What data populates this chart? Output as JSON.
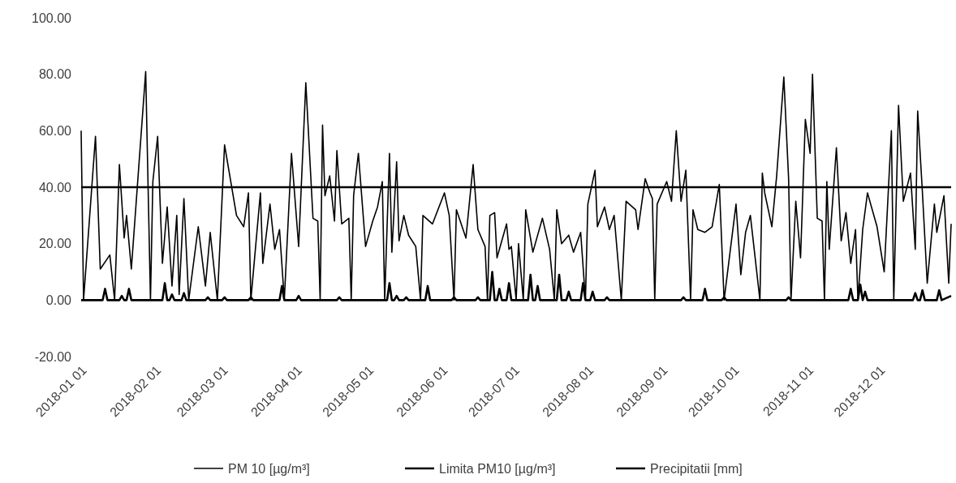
{
  "chart_data": {
    "type": "line",
    "xlim": [
      "2018-01-01",
      "2018-12-31"
    ],
    "xticks": [
      {
        "value": "2018-01-01",
        "label": "2018-01 01"
      },
      {
        "value": "2018-02-01",
        "label": "2018-02 01"
      },
      {
        "value": "2018-03-01",
        "label": "2018-03 01"
      },
      {
        "value": "2018-04-01",
        "label": "2018-04 01"
      },
      {
        "value": "2018-05-01",
        "label": "2018-05 01"
      },
      {
        "value": "2018-06-01",
        "label": "2018-06 01"
      },
      {
        "value": "2018-07-01",
        "label": "2018-07 01"
      },
      {
        "value": "2018-08-01",
        "label": "2018-08 01"
      },
      {
        "value": "2018-09-01",
        "label": "2018-09 01"
      },
      {
        "value": "2018-10-01",
        "label": "2018-10 01"
      },
      {
        "value": "2018-11-01",
        "label": "2018-11 01"
      },
      {
        "value": "2018-12-01",
        "label": "2018-12 01"
      }
    ],
    "ylim": [
      -20,
      100
    ],
    "yticks": [
      {
        "value": -20,
        "label": "-20.00"
      },
      {
        "value": 0,
        "label": "0.00"
      },
      {
        "value": 20,
        "label": "20.00"
      },
      {
        "value": 40,
        "label": "40.00"
      },
      {
        "value": 60,
        "label": "60.00"
      },
      {
        "value": 80,
        "label": "80.00"
      },
      {
        "value": 100,
        "label": "100.00"
      }
    ],
    "legend": "bottom",
    "series": [
      {
        "name": "PM 10 [µg/m³]",
        "color": "#000000",
        "x": [
          "2018-01-01",
          "2018-01-02",
          "2018-01-07",
          "2018-01-09",
          "2018-01-13",
          "2018-01-15",
          "2018-01-17",
          "2018-01-19",
          "2018-01-20",
          "2018-01-22",
          "2018-01-25",
          "2018-01-28",
          "2018-01-30",
          "2018-01-31",
          "2018-02-02",
          "2018-02-04",
          "2018-02-06",
          "2018-02-08",
          "2018-02-10",
          "2018-02-11",
          "2018-02-13",
          "2018-02-15",
          "2018-02-19",
          "2018-02-22",
          "2018-02-24",
          "2018-02-27",
          "2018-03-02",
          "2018-03-07",
          "2018-03-10",
          "2018-03-12",
          "2018-03-13",
          "2018-03-17",
          "2018-03-18",
          "2018-03-21",
          "2018-03-23",
          "2018-03-25",
          "2018-03-27",
          "2018-03-30",
          "2018-04-02",
          "2018-04-05",
          "2018-04-08",
          "2018-04-10",
          "2018-04-11",
          "2018-04-12",
          "2018-04-13",
          "2018-04-15",
          "2018-04-17",
          "2018-04-18",
          "2018-04-20",
          "2018-04-23",
          "2018-04-24",
          "2018-04-25",
          "2018-04-27",
          "2018-04-30",
          "2018-05-03",
          "2018-05-05",
          "2018-05-07",
          "2018-05-08",
          "2018-05-10",
          "2018-05-11",
          "2018-05-13",
          "2018-05-14",
          "2018-05-16",
          "2018-05-18",
          "2018-05-21",
          "2018-05-23",
          "2018-05-24",
          "2018-05-28",
          "2018-06-02",
          "2018-06-04",
          "2018-06-06",
          "2018-06-07",
          "2018-06-11",
          "2018-06-14",
          "2018-06-16",
          "2018-06-19",
          "2018-06-20",
          "2018-06-21",
          "2018-06-23",
          "2018-06-24",
          "2018-06-28",
          "2018-06-29",
          "2018-06-30",
          "2018-07-02",
          "2018-07-03",
          "2018-07-05",
          "2018-07-06",
          "2018-07-09",
          "2018-07-13",
          "2018-07-16",
          "2018-07-18",
          "2018-07-19",
          "2018-07-21",
          "2018-07-24",
          "2018-07-26",
          "2018-07-29",
          "2018-07-31",
          "2018-08-01",
          "2018-08-04",
          "2018-08-05",
          "2018-08-08",
          "2018-08-10",
          "2018-08-12",
          "2018-08-15",
          "2018-08-17",
          "2018-08-21",
          "2018-08-22",
          "2018-08-25",
          "2018-08-27",
          "2018-08-28",
          "2018-08-29",
          "2018-08-30",
          "2018-09-03",
          "2018-09-05",
          "2018-09-07",
          "2018-09-09",
          "2018-09-11",
          "2018-09-13",
          "2018-09-14",
          "2018-09-16",
          "2018-09-19",
          "2018-09-22",
          "2018-09-25",
          "2018-09-27",
          "2018-10-02",
          "2018-10-04",
          "2018-10-06",
          "2018-10-08",
          "2018-10-12",
          "2018-10-13",
          "2018-10-14",
          "2018-10-17",
          "2018-10-19",
          "2018-10-22",
          "2018-10-24",
          "2018-10-25",
          "2018-10-27",
          "2018-10-29",
          "2018-10-31",
          "2018-11-02",
          "2018-11-03",
          "2018-11-05",
          "2018-11-07",
          "2018-11-08",
          "2018-11-09",
          "2018-11-10",
          "2018-11-13",
          "2018-11-15",
          "2018-11-17",
          "2018-11-19",
          "2018-11-21",
          "2018-11-22",
          "2018-11-24",
          "2018-11-26",
          "2018-11-30",
          "2018-12-03",
          "2018-12-06",
          "2018-12-07",
          "2018-12-09",
          "2018-12-11",
          "2018-12-14",
          "2018-12-16",
          "2018-12-17",
          "2018-12-19",
          "2018-12-21",
          "2018-12-24",
          "2018-12-25",
          "2018-12-28",
          "2018-12-30",
          "2018-12-31"
        ],
        "values": [
          60,
          0,
          58,
          11,
          16,
          0,
          48,
          22,
          30,
          11,
          46,
          81,
          0,
          42,
          58,
          13,
          33,
          5,
          30,
          2,
          36,
          0,
          26,
          5,
          24,
          0,
          55,
          30,
          26,
          38,
          0,
          38,
          13,
          34,
          18,
          25,
          0,
          52,
          19,
          77,
          29,
          28,
          0,
          62,
          37,
          44,
          28,
          53,
          27,
          29,
          0,
          37,
          52,
          19,
          28,
          33,
          42,
          0,
          52,
          17,
          49,
          21,
          30,
          23,
          19,
          0,
          30,
          27,
          38,
          30,
          0,
          32,
          22,
          48,
          25,
          19,
          0,
          30,
          31,
          15,
          27,
          18,
          19,
          0,
          20,
          0,
          32,
          17,
          29,
          18,
          0,
          32,
          20,
          23,
          17,
          24,
          0,
          34,
          46,
          26,
          33,
          25,
          30,
          0,
          35,
          32,
          25,
          43,
          38,
          36,
          0,
          34,
          42,
          35,
          60,
          35,
          46,
          0,
          32,
          25,
          24,
          26,
          41,
          0,
          34,
          9,
          24,
          30,
          0,
          45,
          38,
          26,
          44,
          79,
          43,
          0,
          35,
          15,
          64,
          52,
          80,
          29,
          28,
          0,
          42,
          18,
          54,
          21,
          31,
          13,
          25,
          0,
          25,
          38,
          26,
          10,
          60,
          0,
          69,
          35,
          45,
          18,
          67,
          38,
          6,
          34,
          24,
          37,
          6,
          27
        ]
      },
      {
        "name": "Limita PM10 [µg/m³]",
        "color": "#000000",
        "x": [
          "2018-01-01",
          "2018-12-31"
        ],
        "values": [
          40,
          40
        ]
      },
      {
        "name": "Precipitatii [mm]",
        "color": "#000000",
        "x": [
          "2018-01-01",
          "2018-01-10",
          "2018-01-11",
          "2018-01-12",
          "2018-01-17",
          "2018-01-18",
          "2018-01-19",
          "2018-01-20",
          "2018-01-21",
          "2018-01-22",
          "2018-02-04",
          "2018-02-05",
          "2018-02-06",
          "2018-02-07",
          "2018-02-08",
          "2018-02-09",
          "2018-02-12",
          "2018-02-13",
          "2018-02-14",
          "2018-02-22",
          "2018-02-23",
          "2018-02-24",
          "2018-03-01",
          "2018-03-02",
          "2018-03-03",
          "2018-03-12",
          "2018-03-13",
          "2018-03-14",
          "2018-03-25",
          "2018-03-26",
          "2018-03-27",
          "2018-04-01",
          "2018-04-02",
          "2018-04-03",
          "2018-04-18",
          "2018-04-19",
          "2018-04-20",
          "2018-05-09",
          "2018-05-10",
          "2018-05-11",
          "2018-05-12",
          "2018-05-13",
          "2018-05-14",
          "2018-05-16",
          "2018-05-17",
          "2018-05-18",
          "2018-05-25",
          "2018-05-26",
          "2018-05-27",
          "2018-06-05",
          "2018-06-06",
          "2018-06-07",
          "2018-06-15",
          "2018-06-16",
          "2018-06-17",
          "2018-06-21",
          "2018-06-22",
          "2018-06-23",
          "2018-06-24",
          "2018-06-25",
          "2018-06-26",
          "2018-06-28",
          "2018-06-29",
          "2018-06-30",
          "2018-07-07",
          "2018-07-08",
          "2018-07-09",
          "2018-07-10",
          "2018-07-11",
          "2018-07-12",
          "2018-07-19",
          "2018-07-20",
          "2018-07-21",
          "2018-07-23",
          "2018-07-24",
          "2018-07-25",
          "2018-07-29",
          "2018-07-30",
          "2018-07-31",
          "2018-08-02",
          "2018-08-03",
          "2018-08-04",
          "2018-08-08",
          "2018-08-09",
          "2018-08-10",
          "2018-09-09",
          "2018-09-10",
          "2018-09-11",
          "2018-09-18",
          "2018-09-19",
          "2018-09-20",
          "2018-09-26",
          "2018-09-27",
          "2018-09-28",
          "2018-10-23",
          "2018-10-24",
          "2018-10-25",
          "2018-11-18",
          "2018-11-19",
          "2018-11-20",
          "2018-11-22",
          "2018-11-23",
          "2018-11-24",
          "2018-11-25",
          "2018-11-26",
          "2018-12-15",
          "2018-12-16",
          "2018-12-17",
          "2018-12-18",
          "2018-12-19",
          "2018-12-20",
          "2018-12-25",
          "2018-12-26",
          "2018-12-27",
          "2018-12-31"
        ],
        "values": [
          0,
          0,
          4,
          0,
          0,
          1.5,
          0,
          0,
          4,
          0,
          0,
          6,
          0,
          0,
          2,
          0,
          0,
          2.5,
          0,
          0,
          1,
          0,
          0,
          1,
          0,
          0,
          1,
          0,
          0,
          5,
          0,
          0,
          1.5,
          0,
          0,
          1,
          0,
          0,
          6,
          0,
          0,
          1.5,
          0,
          0,
          1,
          0,
          0,
          5,
          0,
          0,
          1,
          0,
          0,
          1,
          0,
          0,
          10,
          0,
          0,
          4,
          0,
          0,
          6,
          0,
          0,
          9,
          0,
          0,
          5,
          0,
          0,
          9,
          0,
          0,
          3,
          0,
          0,
          6,
          0,
          0,
          3,
          0,
          0,
          1,
          0,
          0,
          1,
          0,
          0,
          4,
          0,
          0,
          1,
          0,
          0,
          1,
          0,
          0,
          4,
          0,
          0,
          5.5,
          0,
          3,
          0,
          0,
          2.5,
          0,
          0,
          3.5,
          0,
          0,
          3.5,
          0,
          1.5
        ]
      }
    ]
  }
}
